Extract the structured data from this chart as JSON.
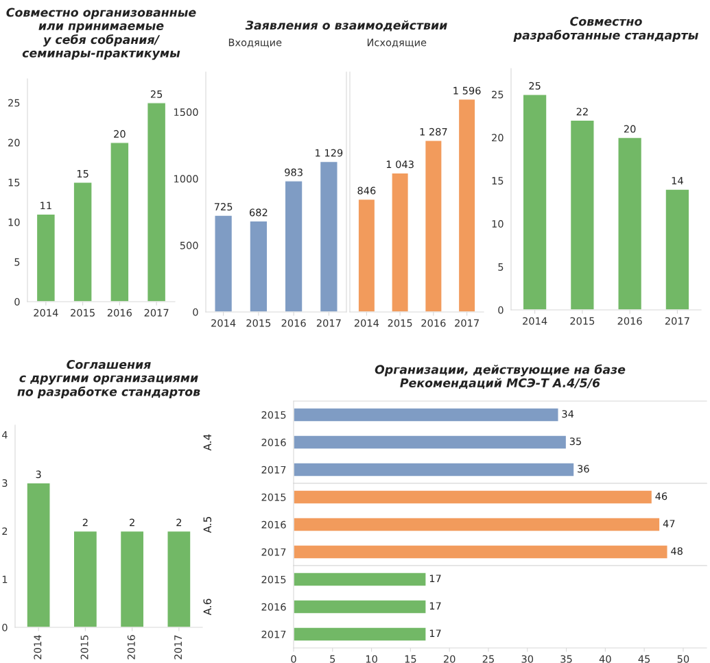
{
  "chart_data": [
    {
      "type": "bar",
      "title": "Совместно организованные\nили принимаемые\nу себя собрания/\nсеминары-практикумы",
      "categories": [
        "2014",
        "2015",
        "2016",
        "2017"
      ],
      "values": [
        11,
        15,
        20,
        25
      ],
      "color": "#72b866",
      "ylim": [
        0,
        28
      ],
      "yticks": [
        0,
        5,
        10,
        15,
        20,
        25
      ],
      "data_labels": true,
      "grid": false,
      "legend": false
    },
    {
      "type": "bar",
      "title": "Заявления о взаимодействии",
      "subtitle": "Входящие",
      "categories": [
        "2014",
        "2015",
        "2016",
        "2017"
      ],
      "values": [
        725,
        682,
        983,
        1129
      ],
      "color": "#7f9cc4",
      "value_labels": [
        "725",
        "682",
        "983",
        "1 129"
      ],
      "ylim": [
        0,
        1800
      ],
      "yticks": [
        0,
        500,
        1000,
        1500
      ],
      "grid": false,
      "legend": false
    },
    {
      "type": "bar",
      "subtitle": "Исходящие",
      "categories": [
        "2014",
        "2015",
        "2016",
        "2017"
      ],
      "values": [
        846,
        1043,
        1287,
        1596
      ],
      "color": "#f29b5c",
      "value_labels": [
        "846",
        "1 043",
        "1 287",
        "1 596"
      ],
      "ylim": [
        0,
        1800
      ],
      "yticks": [
        0,
        500,
        1000,
        1500
      ],
      "tick_labels": "x",
      "grid": false,
      "legend": false
    },
    {
      "type": "bar",
      "title": "Совместно\nразработанные стандарты",
      "categories": [
        "2014",
        "2015",
        "2016",
        "2017"
      ],
      "values": [
        25,
        22,
        20,
        14
      ],
      "color": "#72b866",
      "ylim": [
        0,
        28
      ],
      "yticks": [
        0,
        5,
        10,
        15,
        20,
        25
      ],
      "data_labels": true,
      "grid": false,
      "legend": false
    },
    {
      "type": "bar",
      "title": "Соглашения\nс другими организациями\nпо разработке стандартов",
      "categories": [
        "2014",
        "2015",
        "2016",
        "2017"
      ],
      "values": [
        3,
        2,
        2,
        2
      ],
      "color": "#72b866",
      "ylim": [
        0,
        4.2
      ],
      "yticks": [
        0,
        1,
        2,
        3,
        4
      ],
      "data_labels": true,
      "grid": false,
      "legend": false
    },
    {
      "type": "bar",
      "orientation": "horizontal",
      "title": "Организации, действующие на базе\nРекомендаций МСЭ-Т A.4/5/6",
      "ylabel": "A.4",
      "categories": [
        "2015",
        "2016",
        "2017"
      ],
      "values": [
        34,
        35,
        36
      ],
      "color": "#7f9cc4",
      "xlim": [
        0,
        53
      ],
      "xticks": [
        0,
        5,
        10,
        15,
        20,
        25,
        30,
        35,
        40,
        45,
        50
      ],
      "tick_labels": "y",
      "data_labels": true,
      "grid": false,
      "legend": false
    },
    {
      "type": "bar",
      "orientation": "horizontal",
      "ylabel": "A.5",
      "categories": [
        "2015",
        "2016",
        "2017"
      ],
      "values": [
        46,
        47,
        48
      ],
      "color": "#f29b5c",
      "xlim": [
        0,
        53
      ],
      "xticks": [
        0,
        5,
        10,
        15,
        20,
        25,
        30,
        35,
        40,
        45,
        50
      ],
      "tick_labels": "y",
      "data_labels": true,
      "grid": false,
      "legend": false
    },
    {
      "type": "bar",
      "orientation": "horizontal",
      "ylabel": "A.6",
      "categories": [
        "2015",
        "2016",
        "2017"
      ],
      "values": [
        17,
        17,
        17
      ],
      "color": "#72b866",
      "xlim": [
        0,
        53
      ],
      "xticks": [
        0,
        5,
        10,
        15,
        20,
        25,
        30,
        35,
        40,
        45,
        50
      ],
      "data_labels": true,
      "grid": false,
      "legend": false
    }
  ]
}
